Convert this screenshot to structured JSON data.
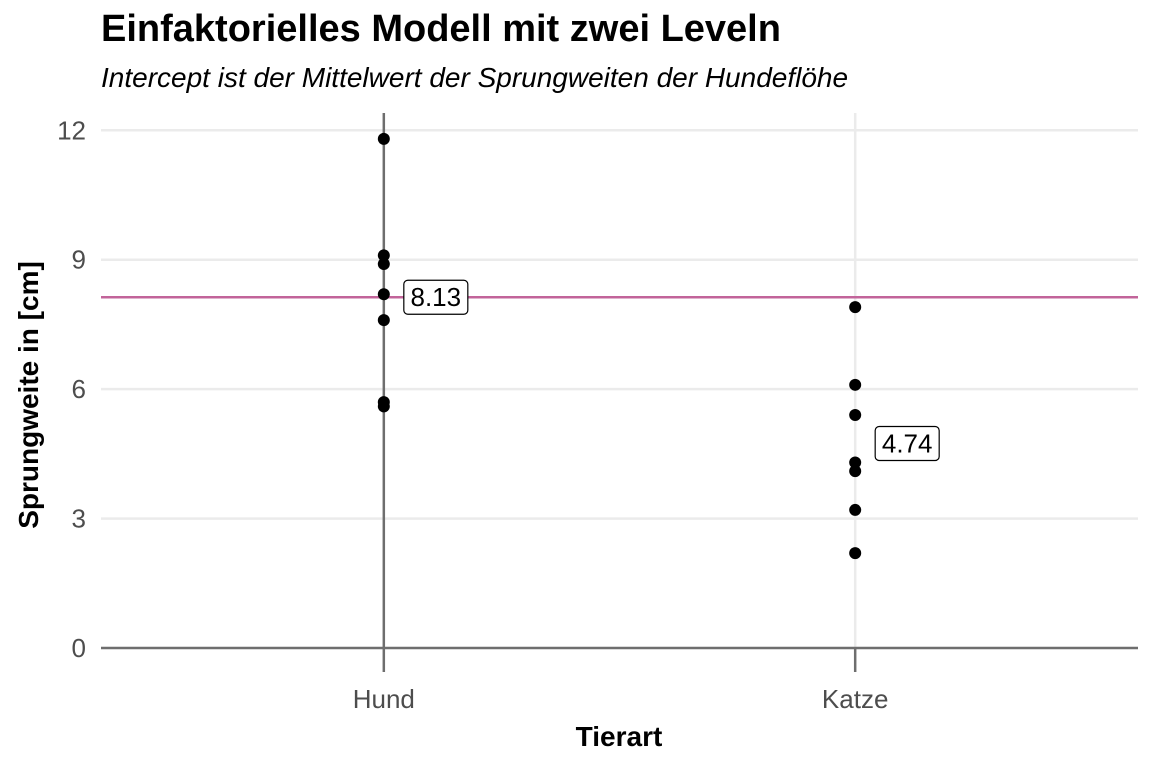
{
  "chart_data": {
    "type": "scatter",
    "title": "Einfaktorielles Modell mit zwei Leveln",
    "subtitle": "Intercept ist der Mittelwert der Sprungweiten der Hundeflöhe",
    "xlabel": "Tierart",
    "ylabel": "Sprungweite in [cm]",
    "categories": [
      "Hund",
      "Katze"
    ],
    "ylim": [
      0,
      12.4
    ],
    "yticks": [
      0,
      3,
      6,
      9,
      12
    ],
    "grid": true,
    "points": [
      {
        "x": "Hund",
        "y": 11.8
      },
      {
        "x": "Hund",
        "y": 9.1
      },
      {
        "x": "Hund",
        "y": 8.9
      },
      {
        "x": "Hund",
        "y": 8.2
      },
      {
        "x": "Hund",
        "y": 7.6
      },
      {
        "x": "Hund",
        "y": 5.7
      },
      {
        "x": "Hund",
        "y": 5.6
      },
      {
        "x": "Katze",
        "y": 7.9
      },
      {
        "x": "Katze",
        "y": 6.1
      },
      {
        "x": "Katze",
        "y": 5.4
      },
      {
        "x": "Katze",
        "y": 4.3
      },
      {
        "x": "Katze",
        "y": 4.1
      },
      {
        "x": "Katze",
        "y": 3.2
      },
      {
        "x": "Katze",
        "y": 2.2
      }
    ],
    "intercept_line": {
      "y": 8.13,
      "color": "#c2649a"
    },
    "annotations": [
      {
        "x": "Hund",
        "y": 8.13,
        "label": "8.13"
      },
      {
        "x": "Katze",
        "y": 4.74,
        "label": "4.74"
      }
    ],
    "colors": {
      "points": "#000000",
      "grid": "#ebebeb",
      "axis": "#6e6e6e"
    }
  }
}
